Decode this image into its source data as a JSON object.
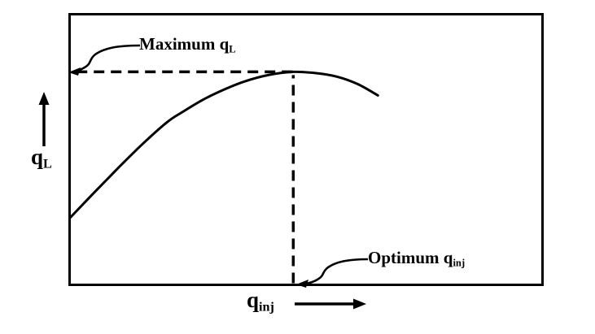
{
  "colors": {
    "ink": "#000000",
    "background": "#ffffff"
  },
  "labels": {
    "max_annotation": {
      "base": "Maximum q",
      "sub": "L"
    },
    "opt_annotation": {
      "base": "Optimum q",
      "sub": "inj"
    },
    "y_axis": {
      "base": "q",
      "sub": "L"
    },
    "x_axis": {
      "base": "q",
      "sub": "inj"
    }
  },
  "chart_data": {
    "type": "line",
    "title": "",
    "xlabel": "q_inj",
    "ylabel": "q_L",
    "axis_tick_labels": "none shown (qualitative sketch, values normalized 0-1)",
    "xlim": [
      0,
      1
    ],
    "ylim": [
      0,
      1
    ],
    "grid": false,
    "legend": "none",
    "x": [
      0,
      0.051,
      0.103,
      0.154,
      0.206,
      0.24,
      0.283,
      0.326,
      0.369,
      0.42,
      0.473,
      0.523,
      0.566,
      0.609,
      0.652
    ],
    "y": [
      0.246,
      0.339,
      0.432,
      0.52,
      0.601,
      0.64,
      0.685,
      0.721,
      0.751,
      0.775,
      0.787,
      0.782,
      0.769,
      0.742,
      0.7
    ],
    "peak": {
      "x": 0.473,
      "y": 0.787
    },
    "guides": {
      "h_dash": {
        "y": 0.787,
        "x_from": 0.015,
        "x_to": 0.473,
        "meaning": "Maximum q_L level"
      },
      "v_dash": {
        "x": 0.473,
        "y_from": 0.006,
        "y_to": 0.775,
        "meaning": "Optimum q_inj position"
      }
    },
    "annotations": [
      {
        "text": "Maximum q_L",
        "points_to": "y-axis at the dashed horizontal line (peak liquid rate)"
      },
      {
        "text": "Optimum q_inj",
        "points_to": "x-axis at the dashed vertical line (peak injection rate)"
      }
    ]
  }
}
